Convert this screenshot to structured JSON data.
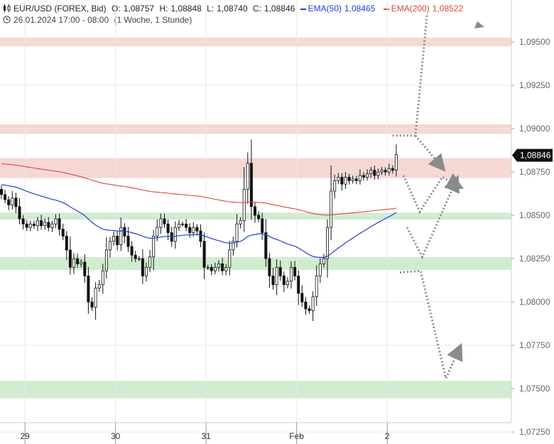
{
  "header": {
    "symbol": "EUR/USD (FOREX, Bid)",
    "open_label": "O:",
    "open": "1,08757",
    "high_label": "H:",
    "high": "1,08848",
    "low_label": "L:",
    "low": "1,08740",
    "close_label": "C:",
    "close": "1,08846",
    "ema50_label": "EMA(50)",
    "ema50_value": "1,08465",
    "ema200_label": "EMA(200)",
    "ema200_value": "1,08522",
    "date_range": "26.01.2024 17:00 - 08:00",
    "period": "(1 Woche, 1 Stunde)"
  },
  "colors": {
    "ema50": "#1f3fd8",
    "ema200": "#d9483b",
    "resistance_zone": "#f3c9c4",
    "support_zone": "#bfe6bf",
    "arrow": "#8a8a8a",
    "price_tag": "#111111"
  },
  "chart_data": {
    "type": "candlestick",
    "y_axis_side": "right",
    "ylim": [
      1.0715,
      1.0965
    ],
    "y_ticks": [
      1.0725,
      1.075,
      1.0775,
      1.08,
      1.0825,
      1.085,
      1.0875,
      1.09,
      1.0925,
      1.095
    ],
    "y_tick_labels": [
      "1,07250",
      "1,07500",
      "1,07750",
      "1,08000",
      "1,08250",
      "1,08500",
      "1,08750",
      "1,09000",
      "1,09250",
      "1,09500"
    ],
    "x_ticks": [
      {
        "label": "29",
        "index": 6.5
      },
      {
        "label": "30",
        "index": 31.5
      },
      {
        "label": "31",
        "index": 56.5
      },
      {
        "label": "Feb",
        "index": 81.5
      },
      {
        "label": "2",
        "index": 106.5
      }
    ],
    "last_price_label": "1,08846",
    "last_price": 1.08846,
    "zones": [
      {
        "kind": "resistance",
        "from": 1.09475,
        "to": 1.09525
      },
      {
        "kind": "resistance",
        "from": 1.0897,
        "to": 1.09025
      },
      {
        "kind": "resistance",
        "from": 1.08715,
        "to": 1.0883
      },
      {
        "kind": "support",
        "from": 1.08475,
        "to": 1.08515
      },
      {
        "kind": "support",
        "from": 1.08185,
        "to": 1.0826
      },
      {
        "kind": "support",
        "from": 1.07445,
        "to": 1.07545
      }
    ],
    "close": [
      1.0862,
      1.0859,
      1.0856,
      1.086,
      1.0855,
      1.0848,
      1.0845,
      1.0843,
      1.0845,
      1.0844,
      1.0847,
      1.0844,
      1.0846,
      1.0843,
      1.0845,
      1.0848,
      1.0842,
      1.0838,
      1.083,
      1.082,
      1.0825,
      1.0822,
      1.0823,
      1.0815,
      1.08,
      1.0797,
      1.0808,
      1.081,
      1.0818,
      1.083,
      1.0835,
      1.0838,
      1.0833,
      1.0843,
      1.0838,
      1.0832,
      1.0827,
      1.0825,
      1.0825,
      1.0815,
      1.082,
      1.0826,
      1.0838,
      1.0843,
      1.0848,
      1.0845,
      1.084,
      1.0835,
      1.0843,
      1.0845,
      1.0845,
      1.0843,
      1.084,
      1.0843,
      1.0841,
      1.0835,
      1.082,
      1.082,
      1.0818,
      1.082,
      1.0822,
      1.0818,
      1.082,
      1.083,
      1.0835,
      1.0845,
      1.0847,
      1.0865,
      1.088,
      1.0855,
      1.085,
      1.0848,
      1.084,
      1.0825,
      1.0815,
      1.081,
      1.082,
      1.0815,
      1.081,
      1.0812,
      1.082,
      1.0815,
      1.0805,
      1.08,
      1.0796,
      1.0795,
      1.0803,
      1.0815,
      1.0822,
      1.0825,
      1.0843,
      1.0864,
      1.087,
      1.0872,
      1.0868,
      1.0872,
      1.087,
      1.0871,
      1.087,
      1.0873,
      1.0872,
      1.0874,
      1.0876,
      1.0873,
      1.0875,
      1.0876,
      1.0875,
      1.0877,
      1.0876,
      1.0885
    ]
  },
  "annotations": {
    "arrow_paths_in_price_and_bar_index": [
      [
        [
          108,
          1.0896
        ],
        [
          114.3,
          1.0896
        ],
        [
          117.5,
          1.0966
        ]
      ],
      [
        [
          114.3,
          1.0896
        ],
        [
          121.5,
          1.0878
        ]
      ],
      [
        [
          111,
          1.0873
        ],
        [
          115.5,
          1.0852
        ],
        [
          121.7,
          1.0872
        ],
        [
          126.1,
          1.0867
        ]
      ],
      [
        [
          112,
          1.0843
        ],
        [
          116.2,
          1.0826
        ],
        [
          125.5,
          1.087
        ]
      ],
      [
        [
          110,
          1.0817
        ],
        [
          115.7,
          1.0818
        ],
        [
          122.7,
          1.0756
        ],
        [
          126.4,
          1.0773
        ]
      ]
    ]
  }
}
